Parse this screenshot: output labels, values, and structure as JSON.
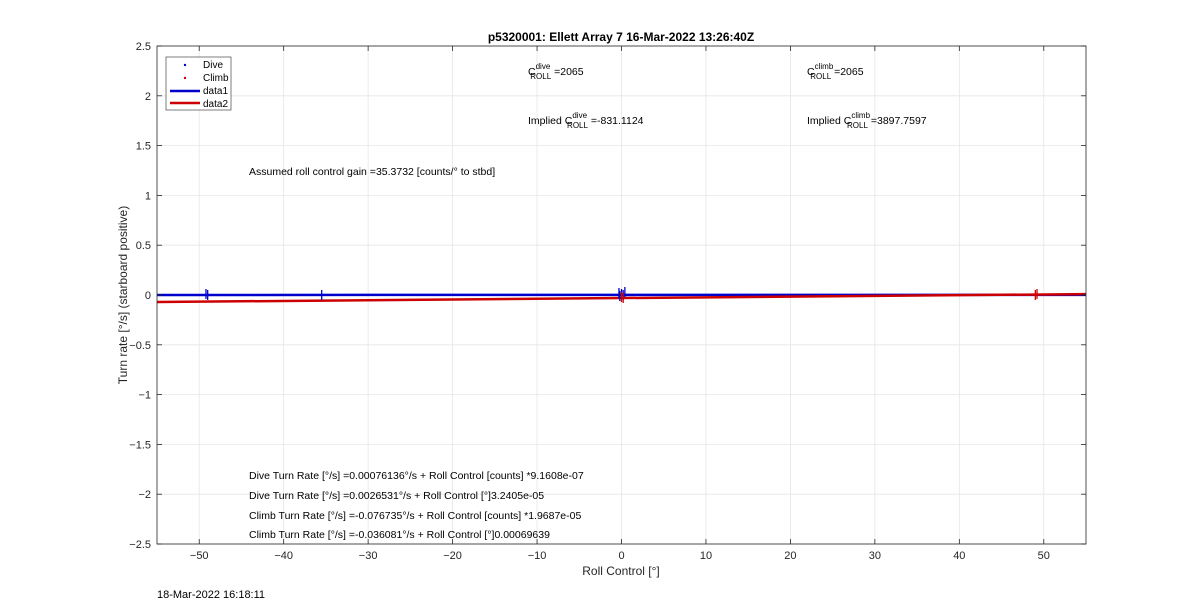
{
  "chart_data": {
    "type": "line",
    "title": "p5320001: Ellett Array 7 16-Mar-2022 13:26:40Z",
    "xlabel": "Roll Control [°]",
    "ylabel": "Turn rate [°/s] (starboard positive)",
    "xlim": [
      -55,
      55
    ],
    "ylim": [
      -2.5,
      2.5
    ],
    "xticks": [
      -50,
      -40,
      -30,
      -20,
      -10,
      0,
      10,
      20,
      30,
      40,
      50
    ],
    "yticks": [
      -2.5,
      -2,
      -1.5,
      -1,
      -0.5,
      0,
      0.5,
      1,
      1.5,
      2,
      2.5
    ],
    "xtick_labels": [
      "−50",
      "−40",
      "−30",
      "−20",
      "−10",
      "0",
      "10",
      "20",
      "30",
      "40",
      "50"
    ],
    "ytick_labels": [
      "−2.5",
      "−2",
      "−1.5",
      "−1",
      "−0.5",
      "0",
      "0.5",
      "1",
      "1.5",
      "2",
      "2.5"
    ],
    "grid": true,
    "legend": {
      "placement": "top-left",
      "entries": [
        {
          "label": "Dive",
          "style": "marker",
          "color": "#0000CC"
        },
        {
          "label": "Climb",
          "style": "marker",
          "color": "#CC0000"
        },
        {
          "label": "data1",
          "style": "line",
          "color": "#0000CC"
        },
        {
          "label": "data2",
          "style": "line",
          "color": "#CC0000"
        }
      ]
    },
    "series": [
      {
        "name": "Dive",
        "kind": "scatter",
        "color": "#0000CC",
        "points": [
          [
            -49.2,
            0.01
          ],
          [
            -49.0,
            0.0
          ],
          [
            -35.5,
            0.0
          ],
          [
            -0.3,
            0.02
          ],
          [
            0.0,
            0.01
          ],
          [
            0.2,
            0.0
          ],
          [
            0.4,
            0.03
          ],
          [
            -0.2,
            -0.01
          ]
        ]
      },
      {
        "name": "Climb",
        "kind": "scatter",
        "color": "#CC0000",
        "points": [
          [
            0.0,
            -0.02
          ],
          [
            0.2,
            -0.03
          ],
          [
            49.0,
            0.0
          ],
          [
            49.2,
            0.01
          ]
        ]
      },
      {
        "name": "data1",
        "kind": "line",
        "color": "#0000CC",
        "points": [
          [
            -55,
            0.0005
          ],
          [
            55,
            0.0012
          ]
        ]
      },
      {
        "name": "data2",
        "kind": "line",
        "color": "#CC0000",
        "points": [
          [
            -55,
            -0.0705
          ],
          [
            55,
            0.0091
          ]
        ]
      }
    ],
    "annotations": {
      "c_roll_dive": {
        "prefix": "C",
        "sup": "dive",
        "sub": "ROLL",
        "value": " =2065"
      },
      "c_roll_climb": {
        "prefix": "C",
        "sup": "climb",
        "sub": "ROLL",
        "value": " =2065"
      },
      "implied_dive": {
        "prefix": "Implied C",
        "sup": "dive",
        "sub": "ROLL",
        "value": " =-831.1124"
      },
      "implied_climb": {
        "prefix": "Implied C",
        "sup": "climb",
        "sub": "ROLL",
        "value": " =3897.7597"
      },
      "gain": "Assumed roll control gain =35.3732 [counts/° to stbd]",
      "fits": [
        "Dive Turn Rate [°/s] =0.00076136°/s + Roll Control [counts] *9.1608e-07",
        "Dive Turn Rate [°/s] =0.0026531°/s + Roll Control [°]3.2405e-05",
        "Climb Turn Rate [°/s] =-0.076735°/s + Roll Control [counts] *1.9687e-05",
        "Climb Turn Rate [°/s] =-0.036081°/s + Roll Control [°]0.00069639"
      ]
    }
  },
  "footer": {
    "timestamp": "18-Mar-2022 16:18:11"
  }
}
